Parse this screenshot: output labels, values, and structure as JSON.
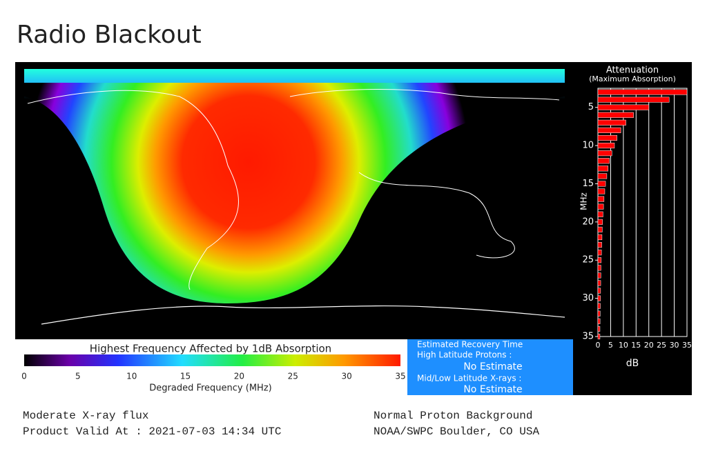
{
  "header": {
    "title": "Radio Blackout"
  },
  "colorbar": {
    "title": "Highest Frequency Affected by 1dB Absorption",
    "label": "Degraded Frequency (MHz)",
    "lim": [
      0,
      35
    ],
    "ticks": [
      0,
      5,
      10,
      15,
      20,
      25,
      30,
      35
    ]
  },
  "recovery": {
    "title": "Estimated Recovery Time",
    "high_label": "High Latitude Protons :",
    "high_value": "No Estimate",
    "low_label": "Mid/Low Latitude X-rays :",
    "low_value": "No Estimate"
  },
  "chart_data": {
    "type": "bar",
    "orientation": "horizontal",
    "title": "Attenuation",
    "subtitle": "(Maximum Absorption)",
    "ylabel": "MHz",
    "xlabel": "dB",
    "color": "#ff0000",
    "y": [
      3,
      4,
      5,
      6,
      7,
      8,
      9,
      10,
      11,
      12,
      13,
      14,
      15,
      16,
      17,
      18,
      19,
      20,
      21,
      22,
      23,
      24,
      25,
      26,
      27,
      28,
      29,
      30,
      31,
      32,
      33,
      34,
      35
    ],
    "values": [
      35,
      28,
      20,
      14,
      11,
      9,
      7.5,
      6.5,
      5.5,
      4.5,
      4,
      3.5,
      3,
      2.7,
      2.4,
      2.2,
      2,
      1.8,
      1.7,
      1.6,
      1.5,
      1.4,
      1.3,
      1.2,
      1.15,
      1.1,
      1.05,
      1,
      0.95,
      0.9,
      0.85,
      0.8,
      0.8
    ],
    "ylim": [
      2.5,
      35
    ],
    "yticks": [
      5,
      10,
      15,
      20,
      25,
      30,
      35
    ],
    "xlim": [
      0,
      35
    ],
    "xticks": [
      0,
      5,
      10,
      15,
      20,
      25,
      30,
      35
    ],
    "grid": true
  },
  "footer": {
    "flux": "Moderate X-ray flux",
    "valid": "Product Valid At : 2021-07-03 14:34 UTC",
    "proton": "Normal Proton Background",
    "source": "NOAA/SWPC Boulder, CO USA"
  }
}
